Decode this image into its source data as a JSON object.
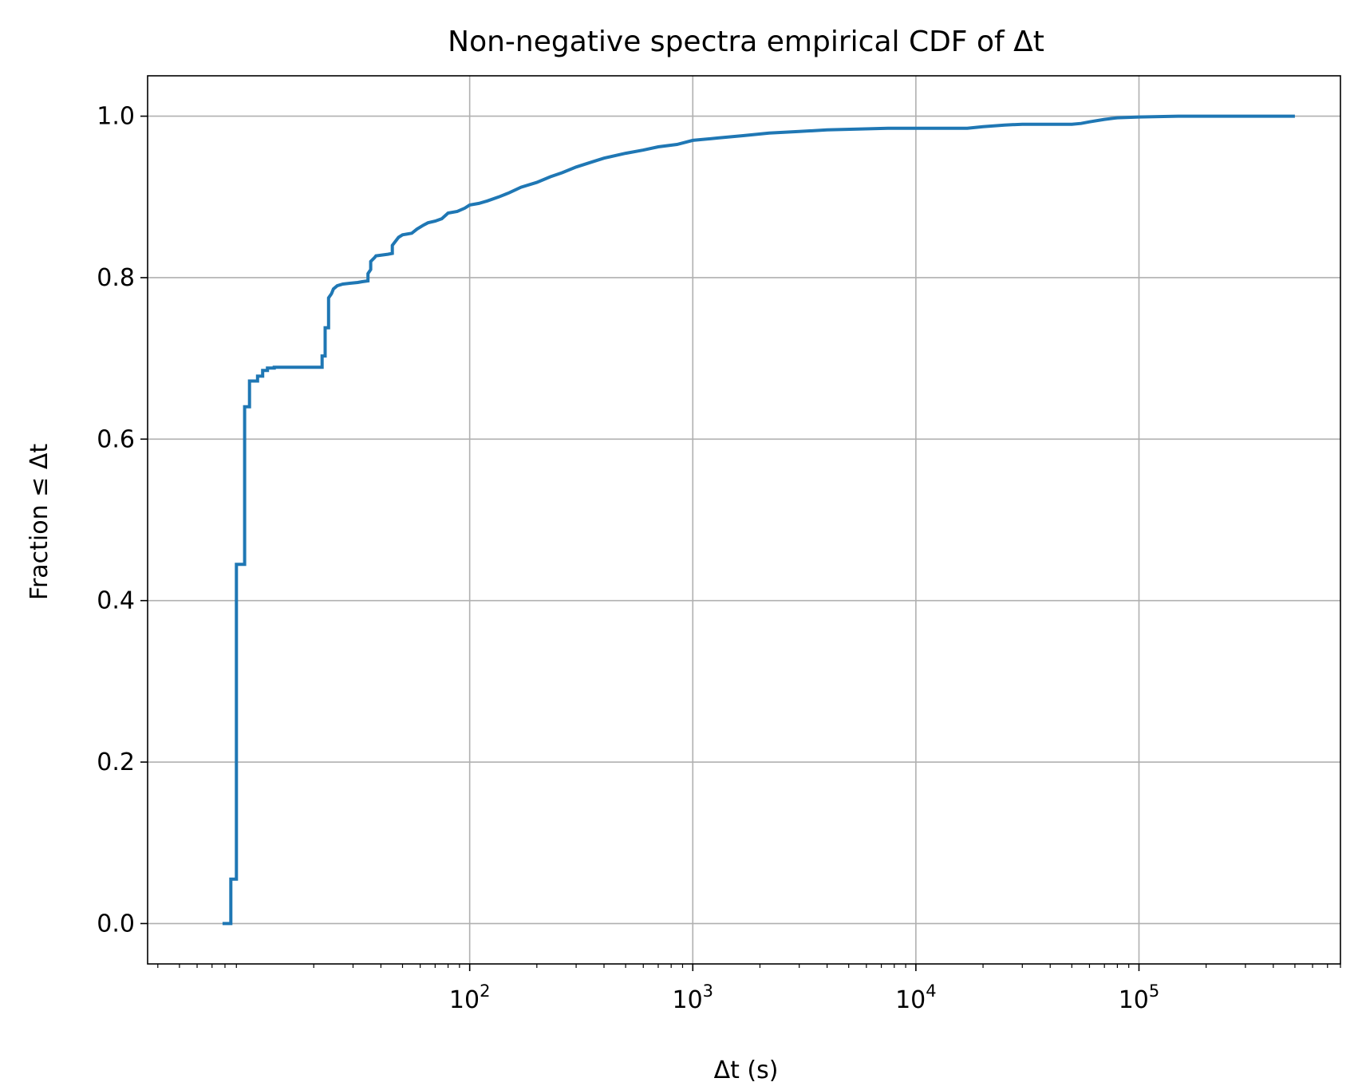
{
  "chart_data": {
    "type": "line",
    "title": "Non-negative spectra empirical CDF of Δt",
    "xlabel": "Δt (s)",
    "ylabel": "Fraction ≤ Δt",
    "x_scale": "log",
    "xlim": [
      3.6,
      800000
    ],
    "ylim": [
      -0.05,
      1.05
    ],
    "grid": true,
    "x_ticks": [
      {
        "value": 100,
        "base": "10",
        "exp": "2"
      },
      {
        "value": 1000,
        "base": "10",
        "exp": "3"
      },
      {
        "value": 10000,
        "base": "10",
        "exp": "4"
      },
      {
        "value": 100000,
        "base": "10",
        "exp": "5"
      }
    ],
    "y_ticks": [
      {
        "value": 0.0,
        "label": "0.0"
      },
      {
        "value": 0.2,
        "label": "0.2"
      },
      {
        "value": 0.4,
        "label": "0.4"
      },
      {
        "value": 0.6,
        "label": "0.6"
      },
      {
        "value": 0.8,
        "label": "0.8"
      },
      {
        "value": 1.0,
        "label": "1.0"
      }
    ],
    "series": [
      {
        "color": "#1f77b4",
        "x": [
          7.8,
          8.5,
          8.5,
          9.0,
          9.0,
          9.8,
          9.8,
          10.3,
          10.3,
          11.2,
          11.2,
          11.8,
          11.8,
          12.4,
          12.4,
          13.3,
          13.3,
          14.5,
          18.6,
          21.8,
          21.8,
          22.5,
          22.5,
          23.3,
          23.3,
          24.0,
          24.5,
          25.5,
          27.0,
          29.0,
          31.5,
          33.0,
          35.0,
          35.0,
          36.0,
          36.0,
          37.5,
          38.0,
          43.0,
          45.0,
          45.0,
          48.0,
          50.0,
          55.0,
          58.0,
          62.0,
          65.0,
          70.0,
          75.0,
          80.0,
          88.0,
          95.0,
          100.0,
          110.0,
          120.0,
          135.0,
          150.0,
          170.0,
          200.0,
          230.0,
          260.0,
          300.0,
          350.0,
          400.0,
          500.0,
          600.0,
          700.0,
          850.0,
          1000.0,
          1300.0,
          1700.0,
          2200.0,
          3000.0,
          4000.0,
          5500.0,
          7500.0,
          10000.0,
          13000.0,
          17000.0,
          20000.0,
          25000.0,
          30000.0,
          40000.0,
          50000.0,
          55000.0,
          60000.0,
          70000.0,
          80000.0,
          100000.0,
          150000.0,
          250000.0,
          350000.0,
          500000.0
        ],
        "y": [
          0.0,
          0.0,
          0.055,
          0.055,
          0.445,
          0.445,
          0.64,
          0.64,
          0.672,
          0.672,
          0.678,
          0.678,
          0.685,
          0.685,
          0.688,
          0.688,
          0.689,
          0.689,
          0.689,
          0.689,
          0.703,
          0.703,
          0.738,
          0.738,
          0.775,
          0.78,
          0.786,
          0.79,
          0.792,
          0.793,
          0.794,
          0.795,
          0.796,
          0.805,
          0.81,
          0.82,
          0.825,
          0.827,
          0.829,
          0.83,
          0.84,
          0.85,
          0.853,
          0.855,
          0.86,
          0.865,
          0.868,
          0.87,
          0.873,
          0.88,
          0.882,
          0.886,
          0.89,
          0.892,
          0.895,
          0.9,
          0.905,
          0.912,
          0.918,
          0.925,
          0.93,
          0.937,
          0.943,
          0.948,
          0.954,
          0.958,
          0.962,
          0.965,
          0.97,
          0.973,
          0.976,
          0.979,
          0.981,
          0.983,
          0.984,
          0.985,
          0.985,
          0.985,
          0.985,
          0.987,
          0.989,
          0.99,
          0.99,
          0.99,
          0.991,
          0.993,
          0.996,
          0.998,
          0.999,
          1.0,
          1.0,
          1.0,
          1.0
        ]
      }
    ]
  }
}
